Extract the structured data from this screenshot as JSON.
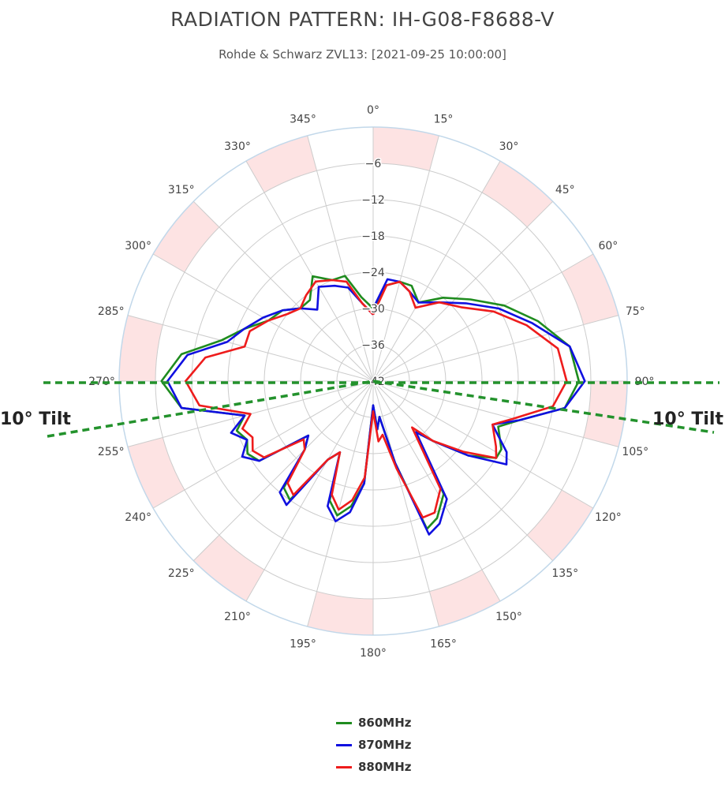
{
  "title": "RADIATION PATTERN: IH-G08-F8688-V",
  "subtitle": "Rohde & Schwarz ZVL13: [2021-09-25 10:00:00]",
  "chart_data": {
    "type": "polar-line",
    "angular_axis": {
      "direction": "clockwise",
      "zero": "top",
      "tick_step_deg": 15,
      "tick_labels": [
        "0°",
        "15°",
        "30°",
        "45°",
        "60°",
        "75°",
        "90°",
        "105°",
        "120°",
        "135°",
        "150°",
        "165°",
        "180°",
        "195°",
        "210°",
        "225°",
        "240°",
        "255°",
        "270°",
        "285°",
        "300°",
        "315°",
        "330°",
        "345°"
      ]
    },
    "radial_axis": {
      "range": [
        -42,
        0
      ],
      "tick_values": [
        -42,
        -36,
        -30,
        -24,
        -18,
        -12,
        -6
      ],
      "tick_labels": [
        "−42",
        "−36",
        "−30",
        "−24",
        "−18",
        "−12",
        "−6"
      ],
      "outer_band": [
        -6,
        0
      ],
      "outer_band_color": "#fde3e3"
    },
    "annotations": [
      {
        "text": "10° Tilt",
        "side": "left"
      },
      {
        "text": "10° Tilt",
        "side": "right"
      }
    ],
    "reference_lines": {
      "color": "#23922c",
      "style": "dashed",
      "angles_deg": [
        90,
        100,
        270,
        260
      ]
    },
    "series": [
      {
        "name": "860MHz",
        "color": "#1f8c1f",
        "angles": [
          0,
          8,
          15,
          22,
          30,
          40,
          50,
          60,
          70,
          80,
          90,
          98,
          105,
          110,
          118,
          122,
          128,
          135,
          140,
          148,
          155,
          160,
          165,
          170,
          175,
          180,
          185,
          190,
          195,
          200,
          205,
          210,
          215,
          220,
          225,
          230,
          235,
          240,
          245,
          250,
          255,
          262,
          270,
          278,
          285,
          292,
          300,
          308,
          315,
          322,
          330,
          338,
          345,
          352,
          360
        ],
        "r": [
          -30,
          -26,
          -25,
          -25,
          -27,
          -24,
          -21,
          -17,
          -13,
          -9,
          -8,
          -10,
          -17,
          -20,
          -18,
          -18,
          -22,
          -28,
          -31,
          -20,
          -17,
          -16,
          -28,
          -36,
          -34,
          -38,
          -25,
          -21,
          -19,
          -21,
          -29,
          -27,
          -18,
          -19,
          -26,
          -28,
          -19,
          -18,
          -19,
          -18,
          -20,
          -10,
          -7,
          -10,
          -16,
          -19,
          -22,
          -23,
          -25,
          -25,
          -22,
          -24,
          -24,
          -28,
          -30
        ]
      },
      {
        "name": "870MHz",
        "color": "#1010e0",
        "angles": [
          0,
          8,
          15,
          22,
          30,
          40,
          50,
          60,
          70,
          80,
          90,
          98,
          105,
          110,
          118,
          122,
          128,
          135,
          140,
          148,
          155,
          160,
          165,
          170,
          175,
          180,
          185,
          190,
          195,
          200,
          205,
          210,
          215,
          220,
          225,
          230,
          235,
          240,
          245,
          250,
          255,
          262,
          270,
          278,
          285,
          292,
          300,
          308,
          315,
          322,
          330,
          338,
          345,
          352,
          360
        ],
        "r": [
          -30,
          -25,
          -25,
          -26,
          -27,
          -25,
          -22,
          -18,
          -14,
          -9,
          -7,
          -10,
          -17,
          -21,
          -17,
          -16,
          -22,
          -28,
          -31,
          -19,
          -16,
          -15,
          -28,
          -36,
          -34,
          -38,
          -25,
          -20,
          -18,
          -20,
          -29,
          -27,
          -17,
          -18,
          -26,
          -28,
          -19,
          -17,
          -19,
          -17,
          -20,
          -10,
          -8,
          -11,
          -17,
          -19,
          -21,
          -23,
          -25,
          -27,
          -24,
          -25,
          -26,
          -29,
          -31
        ]
      },
      {
        "name": "880MHz",
        "color": "#ee1c1c",
        "angles": [
          0,
          8,
          15,
          22,
          30,
          40,
          50,
          60,
          70,
          80,
          90,
          98,
          105,
          110,
          118,
          122,
          128,
          135,
          140,
          148,
          155,
          160,
          165,
          170,
          175,
          180,
          185,
          190,
          195,
          200,
          205,
          210,
          215,
          220,
          225,
          230,
          235,
          240,
          245,
          250,
          255,
          262,
          270,
          278,
          285,
          292,
          300,
          308,
          315,
          322,
          330,
          338,
          345,
          352,
          360
        ],
        "r": [
          -31,
          -26,
          -25,
          -26,
          -28,
          -25,
          -23,
          -19,
          -15,
          -11,
          -10,
          -12,
          -18,
          -21,
          -19,
          -18,
          -23,
          -28,
          -32,
          -21,
          -18,
          -18,
          -27,
          -33,
          -32,
          -37,
          -26,
          -22,
          -20,
          -22,
          -29,
          -27,
          -19,
          -20,
          -26,
          -27,
          -20,
          -19,
          -20,
          -19,
          -21,
          -13,
          -11,
          -14,
          -20,
          -20,
          -22,
          -24,
          -25,
          -24,
          -23,
          -24,
          -25,
          -29,
          -31
        ]
      }
    ]
  }
}
